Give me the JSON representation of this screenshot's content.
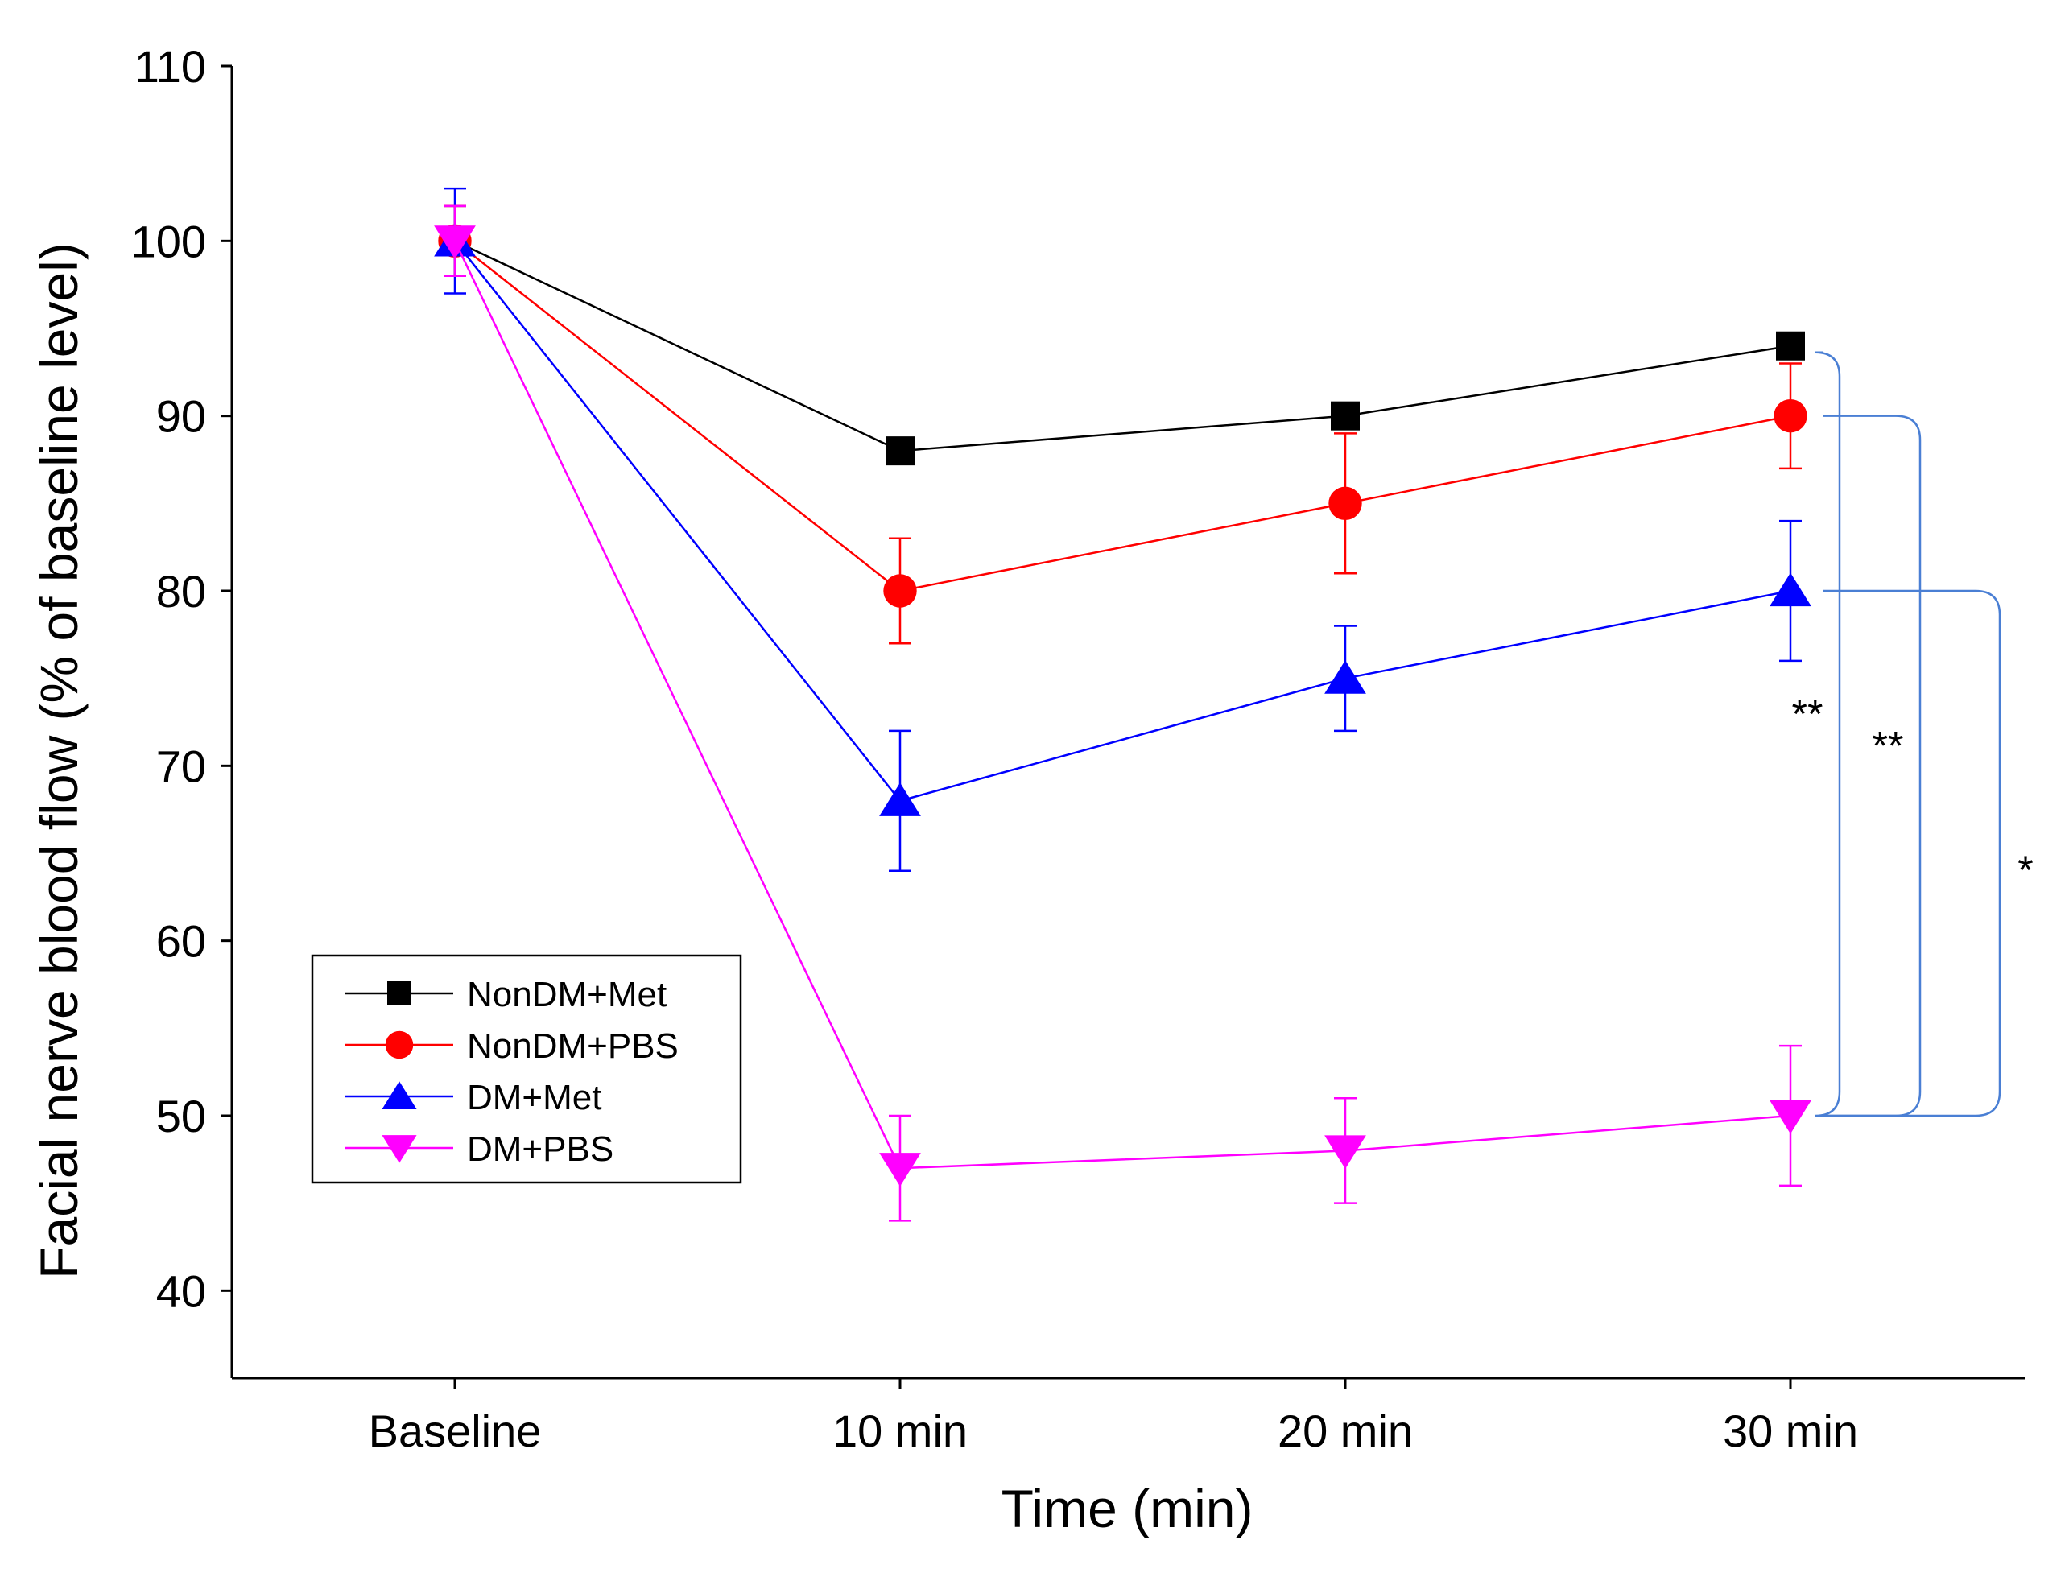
{
  "chart_data": {
    "type": "line",
    "xlabel": "Time (min)",
    "ylabel": "Facial nerve blood flow (% of baseline level)",
    "categories": [
      "Baseline",
      "10 min",
      "20 min",
      "30 min"
    ],
    "ylim": [
      35,
      110
    ],
    "yticks": [
      40,
      50,
      60,
      70,
      80,
      90,
      100,
      110
    ],
    "grid": false,
    "legend_position": "lower-left",
    "series": [
      {
        "name": "NonDM+Met",
        "color": "#000000",
        "marker": "square",
        "values": [
          100,
          88,
          90,
          94
        ],
        "err": [
          2,
          0,
          0,
          0
        ]
      },
      {
        "name": "NonDM+PBS",
        "color": "#ff0000",
        "marker": "circle",
        "values": [
          100,
          80,
          85,
          90
        ],
        "err": [
          2,
          3,
          4,
          3
        ]
      },
      {
        "name": "DM+Met",
        "color": "#0000ff",
        "marker": "triangle-up",
        "values": [
          100,
          68,
          75,
          80
        ],
        "err": [
          3,
          4,
          3,
          4
        ]
      },
      {
        "name": "DM+PBS",
        "color": "#ff00ff",
        "marker": "triangle-down",
        "values": [
          100,
          47,
          48,
          50
        ],
        "err": [
          2,
          3,
          3,
          4
        ]
      }
    ],
    "significance": [
      {
        "label": "**",
        "from": "NonDM+Met",
        "to": "DM+PBS"
      },
      {
        "label": "**",
        "from": "NonDM+PBS",
        "to": "DM+PBS"
      },
      {
        "label": "*",
        "from": "DM+Met",
        "to": "DM+PBS"
      }
    ],
    "bracket_color": "#4a7fd4"
  }
}
